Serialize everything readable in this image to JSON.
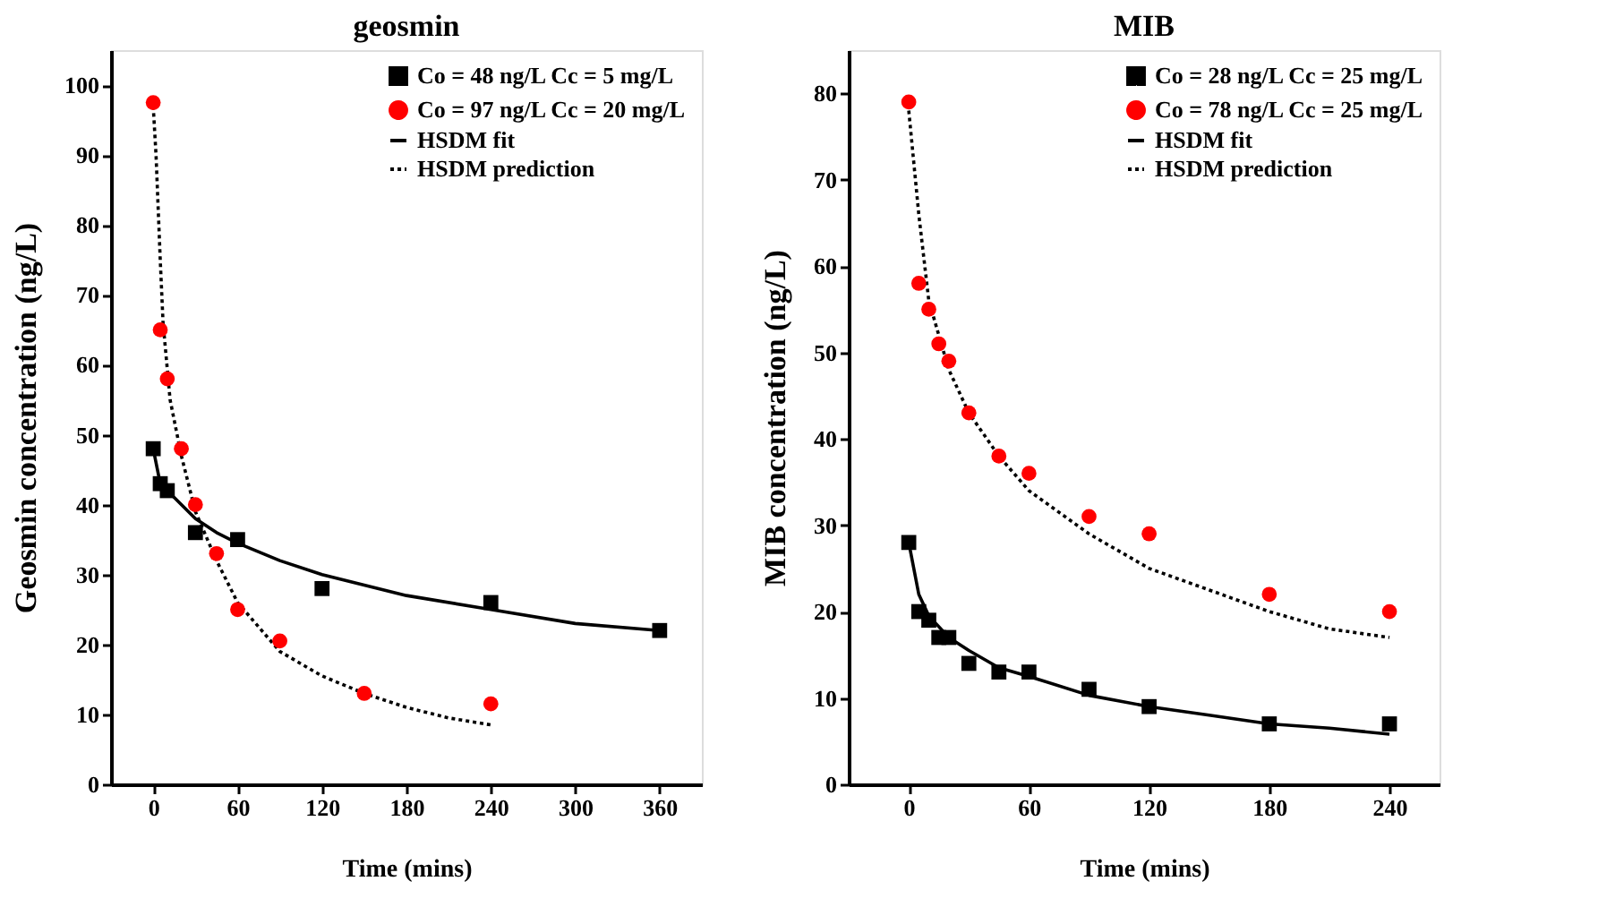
{
  "chart_data": [
    {
      "type": "scatter",
      "title": "geosmin",
      "xlabel": "Time (mins)",
      "ylabel": "Geosmin concentration (ng/L)",
      "xlim": [
        -30,
        390
      ],
      "xticks": [
        0,
        60,
        120,
        180,
        240,
        300,
        360
      ],
      "ylim": [
        0,
        105
      ],
      "yticks": [
        0,
        10,
        20,
        30,
        40,
        50,
        60,
        70,
        80,
        90,
        100
      ],
      "grid": false,
      "legend": "top right",
      "series": [
        {
          "name": "Co = 48 ng/L Cc = 5 mg/L",
          "marker": "square",
          "color": "#000000",
          "x": [
            0,
            5,
            10,
            30,
            60,
            120,
            240,
            360
          ],
          "values": [
            48,
            43,
            42,
            36,
            35,
            28,
            26,
            22
          ]
        },
        {
          "name": "Co = 97 ng/L Cc = 20 mg/L",
          "marker": "circle",
          "color": "#ff0000",
          "x": [
            0,
            5,
            10,
            20,
            30,
            45,
            60,
            90,
            150,
            240
          ],
          "values": [
            97.5,
            65,
            58,
            48,
            40,
            33,
            25,
            20.5,
            13,
            11.5
          ]
        },
        {
          "name": "HSDM fit",
          "type": "line",
          "line_style": "solid",
          "color": "#000000",
          "x": [
            0,
            5,
            15,
            30,
            45,
            60,
            90,
            120,
            180,
            240,
            300,
            360
          ],
          "values": [
            48,
            43,
            41,
            38,
            36,
            34.5,
            32,
            30,
            27,
            25,
            23,
            22
          ]
        },
        {
          "name": "HSDM prediction",
          "type": "line",
          "line_style": "dotted",
          "color": "#000000",
          "x": [
            0,
            2,
            5,
            7,
            12,
            20,
            30,
            45,
            60,
            90,
            120,
            150,
            180,
            210,
            240
          ],
          "values": [
            97,
            90,
            75,
            66,
            55,
            47,
            39,
            32,
            26,
            19,
            15.5,
            13,
            11,
            9.5,
            8.5
          ]
        }
      ]
    },
    {
      "type": "scatter",
      "title": "MIB",
      "xlabel": "Time (mins)",
      "ylabel": "MIB concentration (ng/L)",
      "xlim": [
        -30,
        265
      ],
      "xticks": [
        0,
        60,
        120,
        180,
        240
      ],
      "ylim": [
        0,
        85
      ],
      "yticks": [
        0,
        10,
        20,
        30,
        40,
        50,
        60,
        70,
        80
      ],
      "grid": false,
      "legend": "top right",
      "series": [
        {
          "name": "Co = 28 ng/L Cc = 25 mg/L",
          "marker": "square",
          "color": "#000000",
          "x": [
            0,
            5,
            10,
            15,
            20,
            30,
            45,
            60,
            90,
            120,
            180,
            240
          ],
          "values": [
            28,
            20,
            19,
            17,
            17,
            14,
            13,
            13,
            11,
            9,
            7,
            7
          ]
        },
        {
          "name": "Co = 78 ng/L Cc = 25 mg/L",
          "marker": "circle",
          "color": "#ff0000",
          "x": [
            0,
            5,
            10,
            15,
            20,
            30,
            45,
            60,
            90,
            120,
            180,
            240
          ],
          "values": [
            79,
            58,
            55,
            51,
            49,
            43,
            38,
            36,
            31,
            29,
            22,
            20
          ]
        },
        {
          "name": "HSDM fit",
          "type": "line",
          "line_style": "solid",
          "color": "#000000",
          "x": [
            0,
            5,
            10,
            20,
            30,
            45,
            60,
            90,
            120,
            150,
            180,
            210,
            240
          ],
          "values": [
            28,
            22,
            19.5,
            17,
            15.5,
            13.5,
            12.5,
            10.3,
            9,
            8,
            7,
            6.5,
            5.8
          ]
        },
        {
          "name": "HSDM prediction",
          "type": "line",
          "line_style": "dotted",
          "color": "#000000",
          "x": [
            0,
            5,
            10,
            15,
            20,
            30,
            45,
            60,
            90,
            120,
            150,
            180,
            210,
            240
          ],
          "values": [
            78,
            66,
            56,
            52,
            48,
            43,
            38,
            34,
            29,
            25,
            22.5,
            20,
            18,
            17
          ]
        }
      ]
    }
  ]
}
